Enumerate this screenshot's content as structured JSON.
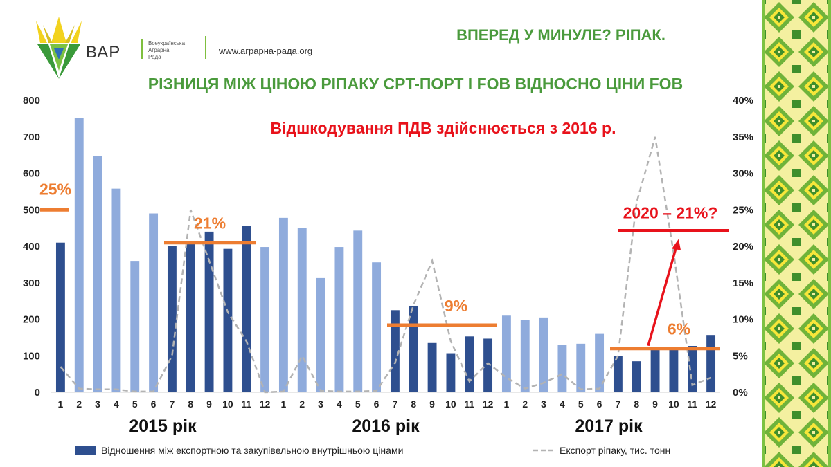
{
  "header": {
    "logo_text": "ВАР",
    "logo_org": [
      "Всеукраїнська",
      "Аграрна",
      "Рада"
    ],
    "url": "www.аграрна-рада.org",
    "title": "ВПЕРЕД У МИНУЛЕ? РІПАК."
  },
  "chart_data": {
    "type": "bar",
    "title": "РІЗНИЦЯ МІЖ ЦІНОЮ РІПАКУ CPT-ПОРТ І FOB ВІДНОСНО ЦІНИ FOB",
    "categories": [
      "1",
      "2",
      "3",
      "4",
      "5",
      "6",
      "7",
      "8",
      "9",
      "10",
      "11",
      "12",
      "1",
      "2",
      "3",
      "4",
      "5",
      "6",
      "7",
      "8",
      "9",
      "10",
      "11",
      "12",
      "1",
      "2",
      "3",
      "4",
      "5",
      "6",
      "7",
      "8",
      "9",
      "10",
      "11",
      "12"
    ],
    "year_labels": [
      "2015 рік",
      "2016 рік",
      "2017 рік"
    ],
    "y_left": {
      "ticks": [
        0,
        100,
        200,
        300,
        400,
        500,
        600,
        700,
        800
      ],
      "range": [
        0,
        800
      ]
    },
    "y_right": {
      "ticks": [
        "0%",
        "5%",
        "10%",
        "15%",
        "20%",
        "25%",
        "30%",
        "35%",
        "40%"
      ],
      "range": [
        0,
        0.4
      ]
    },
    "series": [
      {
        "name": "Відношення між експортною та закупівельною внутрішньою цінами",
        "type": "bar",
        "axis": "left",
        "values": [
          410,
          752,
          648,
          558,
          360,
          490,
          400,
          415,
          440,
          393,
          455,
          398,
          478,
          450,
          313,
          398,
          443,
          356,
          225,
          237,
          135,
          107,
          153,
          147,
          210,
          198,
          205,
          130,
          133,
          160,
          100,
          85,
          120,
          122,
          127,
          157
        ],
        "shade": [
          "dark",
          "light",
          "light",
          "light",
          "light",
          "light",
          "dark",
          "dark",
          "dark",
          "dark",
          "dark",
          "light",
          "light",
          "light",
          "light",
          "light",
          "light",
          "light",
          "dark",
          "dark",
          "dark",
          "dark",
          "dark",
          "dark",
          "light",
          "light",
          "light",
          "light",
          "light",
          "light",
          "dark",
          "dark",
          "dark",
          "dark",
          "dark",
          "dark"
        ]
      },
      {
        "name": "Експорт ріпаку, тис. тонн",
        "type": "line",
        "style": "dashed",
        "axis": "right",
        "values": [
          0.035,
          0.005,
          0.004,
          0.004,
          0.001,
          0.001,
          0.05,
          0.25,
          0.18,
          0.11,
          0.07,
          0.0,
          0.001,
          0.05,
          0.002,
          0.001,
          0.001,
          0.002,
          0.04,
          0.12,
          0.18,
          0.07,
          0.015,
          0.04,
          0.02,
          0.005,
          0.013,
          0.025,
          0.004,
          0.005,
          0.05,
          0.26,
          0.35,
          0.19,
          0.01,
          0.02
        ]
      }
    ],
    "annotations": {
      "subtitle": "Відшкодування ПДВ здійснюється з 2016 р.",
      "levels": [
        {
          "label": "25%",
          "value": 0.25,
          "from": 0,
          "to": 0
        },
        {
          "label": "21%",
          "value": 0.205,
          "from": 6,
          "to": 10
        },
        {
          "label": "9%",
          "value": 0.092,
          "from": 18,
          "to": 23
        },
        {
          "label": "6%",
          "value": 0.06,
          "from": 30,
          "to": 35
        }
      ],
      "forecast": {
        "label": "2020 – 21%?",
        "value": 0.21
      }
    },
    "colors": {
      "bar_dark": "#2e4f8f",
      "bar_light": "#8fabdc",
      "line": "#b3b3b3",
      "level": "#ed7d31",
      "forecast": "#e8121b",
      "title_green": "#4a9a3c"
    },
    "legend_position": "bottom"
  }
}
